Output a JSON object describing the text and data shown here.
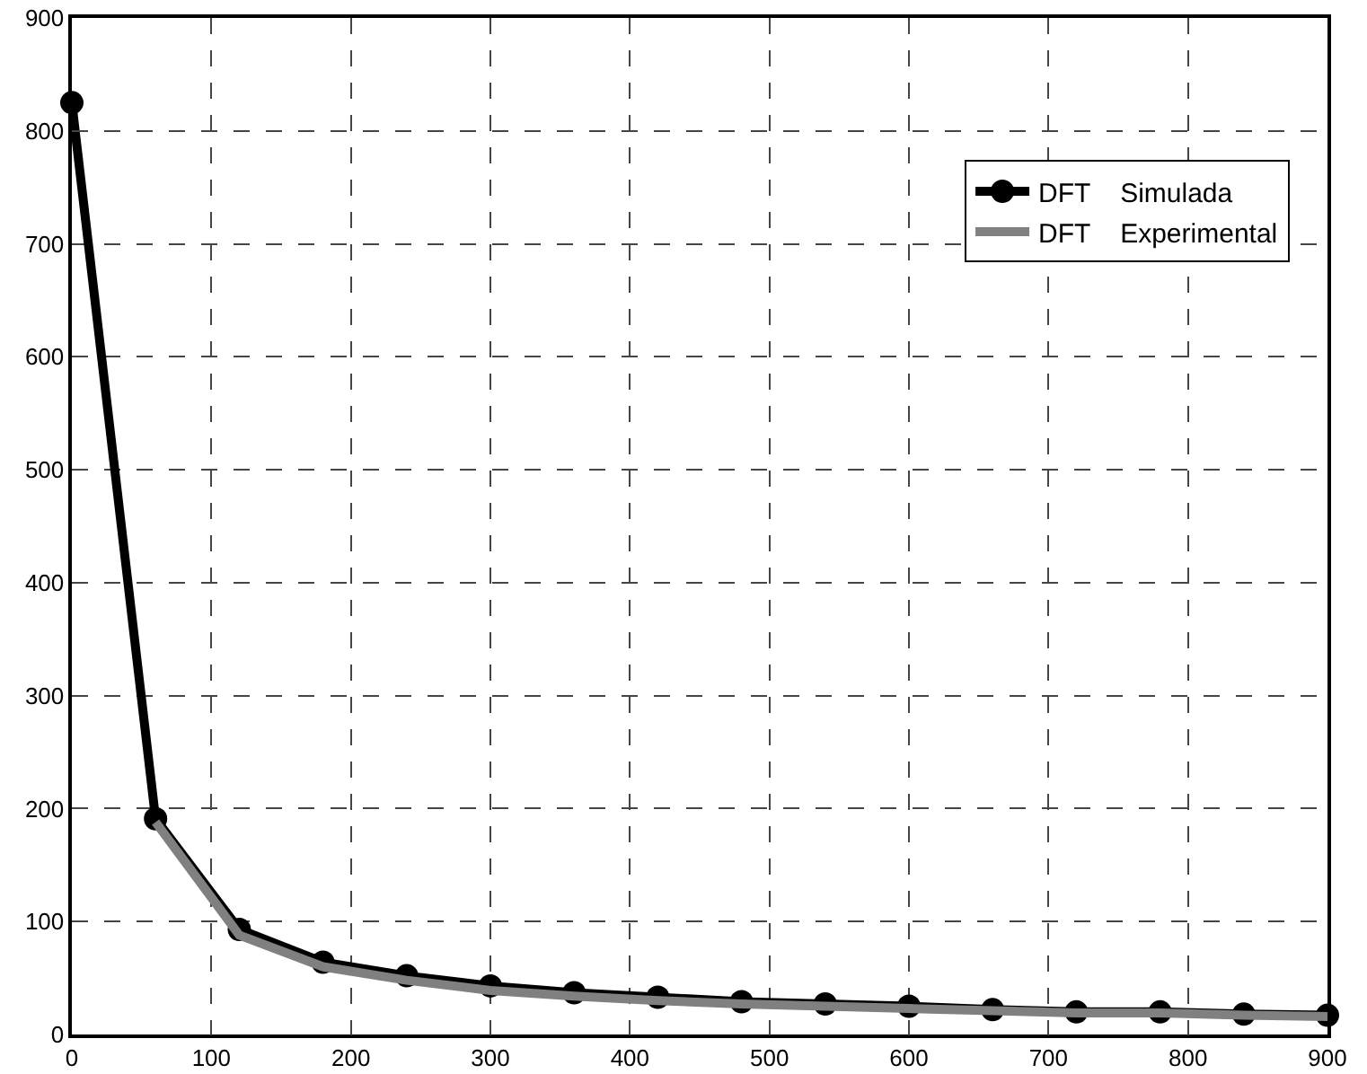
{
  "chart_data": {
    "type": "line",
    "x": [
      0,
      60,
      120,
      180,
      240,
      300,
      360,
      420,
      480,
      540,
      600,
      660,
      720,
      780,
      840,
      900
    ],
    "series": [
      {
        "name": "DFT    Simulada",
        "color": "#000000",
        "marker": "circle",
        "values": [
          825,
          191,
          93,
          64,
          52,
          43,
          37,
          33,
          29,
          27,
          25,
          22,
          20,
          20,
          18,
          17
        ]
      },
      {
        "name": "DFT    Experimental",
        "color": "#808080",
        "marker": "none",
        "values": [
          null,
          188,
          88,
          60,
          48,
          39,
          34,
          30,
          27,
          25,
          23,
          21,
          19,
          19,
          17,
          16
        ]
      }
    ],
    "xlim": [
      0,
      900
    ],
    "xticks": [
      0,
      100,
      200,
      300,
      400,
      500,
      600,
      700,
      800,
      900
    ],
    "ylim": [
      0,
      900
    ],
    "yticks": [
      0,
      100,
      200,
      300,
      400,
      500,
      600,
      700,
      800,
      900
    ],
    "grid": true,
    "legend": "top right",
    "line_style": "solid"
  }
}
